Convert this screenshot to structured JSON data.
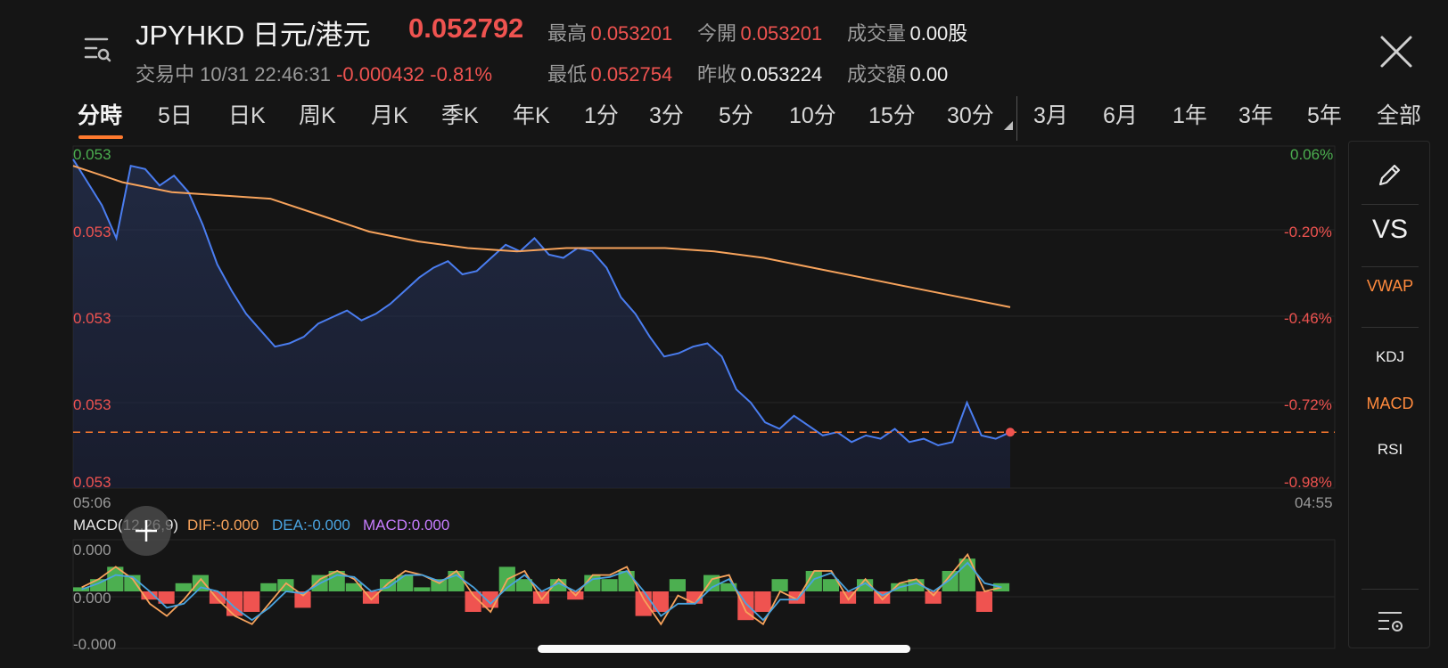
{
  "header": {
    "title": "JPYHKD 日元/港元",
    "price": "0.052792",
    "status": "交易中",
    "datetime": "10/31 22:46:31",
    "change": "-0.000432",
    "change_pct": "-0.81%",
    "stats": {
      "high_label": "最高",
      "high": "0.053201",
      "open_label": "今開",
      "open": "0.053201",
      "volume_label": "成交量",
      "volume": "0.00股",
      "low_label": "最低",
      "low": "0.052754",
      "prev_close_label": "昨收",
      "prev_close": "0.053224",
      "turnover_label": "成交額",
      "turnover": "0.00"
    }
  },
  "tabs": [
    "分時",
    "5日",
    "日K",
    "周K",
    "月K",
    "季K",
    "年K",
    "1分",
    "3分",
    "5分",
    "10分",
    "15分",
    "30分",
    "3月",
    "6月",
    "1年",
    "3年",
    "5年",
    "全部"
  ],
  "active_tab": "分時",
  "side_panel": {
    "vs_label": "VS",
    "vwap_label": "VWAP",
    "kdj_label": "KDJ",
    "macd_label": "MACD",
    "rsi_label": "RSI",
    "icons": [
      "pencil-icon",
      "list-settings-icon"
    ]
  },
  "colors": {
    "price_line": "#4a7df0",
    "avg_line": "#f7a35c",
    "up_red": "#ef5350",
    "down_green": "#4caf50",
    "dif": "#f7a35c",
    "dea": "#4aa3df",
    "macd_label": "#c77dff",
    "accent": "#ff7a2e"
  },
  "chart_data": [
    {
      "type": "line",
      "name": "intraday",
      "y_left_ticks": [
        "0.053",
        "0.053",
        "0.053",
        "0.053",
        "0.053"
      ],
      "y_right_ticks": [
        "0.06%",
        "-0.20%",
        "-0.46%",
        "-0.72%",
        "-0.98%"
      ],
      "x_start": "05:06",
      "x_end": "04:55",
      "ylim_pct": [
        -0.98,
        0.06
      ],
      "reference_line_pct": -0.81,
      "series": [
        {
          "values_pct": [
            0.02,
            -0.05,
            -0.12,
            -0.22,
            0.0,
            -0.01,
            -0.06,
            -0.03,
            -0.08,
            -0.18,
            -0.3,
            -0.38,
            -0.45,
            -0.5,
            -0.55,
            -0.54,
            -0.52,
            -0.48,
            -0.46,
            -0.44,
            -0.47,
            -0.45,
            -0.42,
            -0.38,
            -0.34,
            -0.31,
            -0.29,
            -0.33,
            -0.32,
            -0.28,
            -0.24,
            -0.26,
            -0.22,
            -0.27,
            -0.28,
            -0.25,
            -0.26,
            -0.31,
            -0.4,
            -0.45,
            -0.52,
            -0.58,
            -0.57,
            -0.55,
            -0.54,
            -0.58,
            -0.68,
            -0.72,
            -0.78,
            -0.8,
            -0.76,
            -0.79,
            -0.82,
            -0.81,
            -0.84,
            -0.82,
            -0.83,
            -0.8,
            -0.84,
            -0.83,
            -0.85,
            -0.84,
            -0.72,
            -0.82,
            -0.83,
            -0.81
          ]
        },
        {
          "name": "average",
          "values_pct": [
            0.0,
            -0.05,
            -0.08,
            -0.09,
            -0.1,
            -0.15,
            -0.2,
            -0.23,
            -0.25,
            -0.26,
            -0.25,
            -0.25,
            -0.25,
            -0.26,
            -0.28,
            -0.31,
            -0.34,
            -0.37,
            -0.4,
            -0.43
          ]
        }
      ]
    },
    {
      "type": "bar",
      "name": "macd",
      "title": "MACD(12,26,9)",
      "dif_label": "DIF:-0.000",
      "dea_label": "DEA:-0.000",
      "macd_value_label": "MACD:0.000",
      "y_ticks": [
        "0.000",
        "0.000",
        "-0.000"
      ],
      "ylim": [
        -1,
        1
      ],
      "hist_values": [
        0.1,
        0.3,
        0.6,
        0.4,
        -0.2,
        -0.3,
        0.2,
        0.4,
        -0.3,
        -0.6,
        -0.5,
        0.2,
        0.3,
        -0.4,
        0.4,
        0.5,
        0.2,
        -0.3,
        0.3,
        0.4,
        0.1,
        0.3,
        0.5,
        -0.5,
        -0.4,
        0.6,
        0.3,
        -0.3,
        0.3,
        -0.2,
        0.4,
        0.3,
        0.5,
        -0.6,
        -0.5,
        0.3,
        -0.3,
        0.4,
        0.2,
        -0.7,
        -0.5,
        0.3,
        -0.3,
        0.5,
        0.3,
        -0.3,
        0.3,
        -0.3,
        0.2,
        0.3,
        -0.3,
        0.5,
        0.8,
        -0.5,
        0.2
      ],
      "dif_values": [
        0.1,
        0.3,
        0.6,
        0.3,
        -0.3,
        -0.6,
        -0.2,
        0.3,
        -0.2,
        -0.6,
        -0.8,
        -0.3,
        0.2,
        -0.1,
        0.3,
        0.5,
        0.3,
        -0.2,
        0.2,
        0.5,
        0.4,
        0.2,
        0.5,
        -0.1,
        -0.5,
        0.3,
        0.5,
        -0.2,
        0.3,
        -0.1,
        0.4,
        0.4,
        0.6,
        -0.2,
        -0.8,
        -0.1,
        -0.3,
        0.3,
        0.4,
        -0.5,
        -0.8,
        0.0,
        -0.2,
        0.5,
        0.5,
        -0.2,
        0.3,
        -0.2,
        0.2,
        0.3,
        -0.1,
        0.4,
        0.9,
        0.0,
        0.1
      ],
      "dea_values": [
        0.05,
        0.2,
        0.4,
        0.35,
        0.0,
        -0.4,
        -0.3,
        0.1,
        0.0,
        -0.4,
        -0.7,
        -0.4,
        0.0,
        -0.05,
        0.2,
        0.4,
        0.35,
        0.0,
        0.1,
        0.4,
        0.4,
        0.25,
        0.4,
        0.1,
        -0.3,
        0.1,
        0.4,
        0.0,
        0.2,
        0.0,
        0.3,
        0.35,
        0.5,
        0.0,
        -0.6,
        -0.3,
        -0.3,
        0.1,
        0.3,
        -0.3,
        -0.7,
        -0.2,
        -0.2,
        0.3,
        0.45,
        0.0,
        0.2,
        -0.1,
        0.1,
        0.2,
        0.0,
        0.3,
        0.7,
        0.2,
        0.1
      ]
    }
  ]
}
